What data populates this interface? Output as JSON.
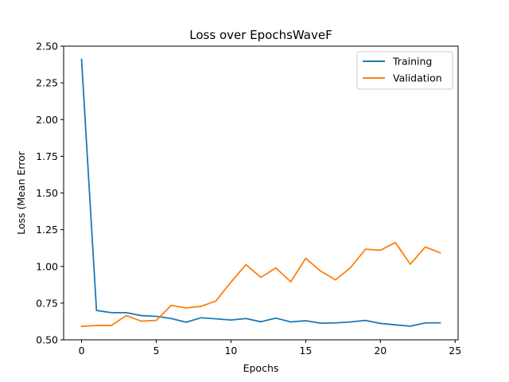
{
  "chart_data": {
    "type": "line",
    "title": "Loss over EpochsWaveF",
    "xlabel": "Epochs",
    "ylabel": "Loss (Mean Error",
    "xlim": [
      -1.2,
      25.2
    ],
    "ylim": [
      0.5,
      2.5
    ],
    "xticks": [
      0,
      5,
      10,
      15,
      20,
      25
    ],
    "yticks": [
      0.5,
      0.75,
      1.0,
      1.25,
      1.5,
      1.75,
      2.0,
      2.25,
      2.5
    ],
    "xtick_labels": [
      "0",
      "5",
      "10",
      "15",
      "20",
      "25"
    ],
    "ytick_labels": [
      "0.50",
      "0.75",
      "1.00",
      "1.25",
      "1.50",
      "1.75",
      "2.00",
      "2.25",
      "2.50"
    ],
    "legend_position": "top-right",
    "grid": false,
    "x": [
      0,
      1,
      2,
      3,
      4,
      5,
      6,
      7,
      8,
      9,
      10,
      11,
      12,
      13,
      14,
      15,
      16,
      17,
      18,
      19,
      20,
      21,
      22,
      23,
      24
    ],
    "series": [
      {
        "name": "Training",
        "color": "#1f77b4",
        "values": [
          2.41,
          0.7,
          0.685,
          0.685,
          0.665,
          0.66,
          0.645,
          0.62,
          0.65,
          0.643,
          0.635,
          0.645,
          0.623,
          0.648,
          0.622,
          0.63,
          0.613,
          0.615,
          0.622,
          0.632,
          0.612,
          0.602,
          0.593,
          0.615,
          0.616
        ]
      },
      {
        "name": "Validation",
        "color": "#ff7f0e",
        "values": [
          0.592,
          0.598,
          0.598,
          0.665,
          0.627,
          0.632,
          0.735,
          0.717,
          0.728,
          0.765,
          0.893,
          1.012,
          0.925,
          0.99,
          0.895,
          1.055,
          0.968,
          0.908,
          0.992,
          1.117,
          1.11,
          1.163,
          1.015,
          1.132,
          1.093
        ]
      }
    ]
  }
}
